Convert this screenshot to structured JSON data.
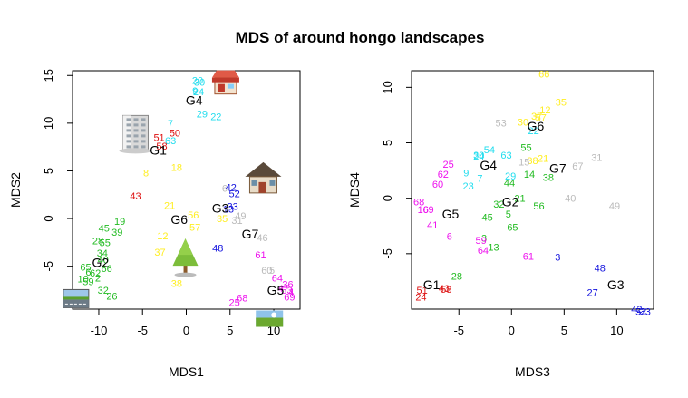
{
  "chart_data": {
    "title": "MDS of around hongo landscapes",
    "colors": {
      "green": "#22bb22",
      "yellow": "#ffee22",
      "cyan": "#22ddee",
      "red": "#dd1111",
      "blue": "#1111dd",
      "magenta": "#ee11ee",
      "gray": "#bbbbbb",
      "black": "#000000"
    },
    "panels": [
      {
        "type": "scatter",
        "xlabel": "MDS1",
        "ylabel": "MDS2",
        "xlim": [
          -13,
          13
        ],
        "ylim": [
          -9.5,
          15.5
        ],
        "xticks": [
          -10,
          -5,
          0,
          5,
          10
        ],
        "yticks": [
          -5,
          0,
          5,
          10,
          15
        ],
        "xtick_labels": [
          "-10",
          "-5",
          "0",
          "5",
          "10"
        ],
        "ytick_labels": [
          "-5",
          "0",
          "5",
          "10",
          "15"
        ],
        "icons": [
          {
            "name": "road-icon",
            "x": -12.6,
            "y": -8.4
          },
          {
            "name": "building-icon",
            "x": -5.8,
            "y": 9.0
          },
          {
            "name": "shop-icon",
            "x": 4.5,
            "y": 14.2
          },
          {
            "name": "house-icon",
            "x": 8.8,
            "y": 4.2
          },
          {
            "name": "tree-icon",
            "x": -0.1,
            "y": -4.0
          },
          {
            "name": "landscape-icon",
            "x": 9.5,
            "y": -10.5
          }
        ],
        "groups": [
          {
            "label": "G1",
            "x": -3.2,
            "y": 7.2
          },
          {
            "label": "G2",
            "x": -9.8,
            "y": -4.6
          },
          {
            "label": "G3",
            "x": 3.9,
            "y": 1.1
          },
          {
            "label": "G4",
            "x": 0.9,
            "y": 12.4
          },
          {
            "label": "G5",
            "x": 10.2,
            "y": -7.5
          },
          {
            "label": "G6",
            "x": -0.8,
            "y": -0.1
          },
          {
            "label": "G7",
            "x": 7.3,
            "y": -1.6
          }
        ],
        "points": [
          {
            "label": "7",
            "x": -1.8,
            "y": 10.0,
            "color": "cyan"
          },
          {
            "label": "63",
            "x": -1.8,
            "y": 8.2,
            "color": "cyan"
          },
          {
            "label": "29",
            "x": 1.8,
            "y": 11.0,
            "color": "cyan"
          },
          {
            "label": "22",
            "x": 3.4,
            "y": 10.7,
            "color": "cyan"
          },
          {
            "label": "20",
            "x": 1.3,
            "y": 14.5,
            "color": "cyan"
          },
          {
            "label": "30",
            "x": 1.5,
            "y": 14.3,
            "color": "cyan"
          },
          {
            "label": "24",
            "x": 1.4,
            "y": 13.3,
            "color": "cyan"
          },
          {
            "label": "9",
            "x": 1.0,
            "y": 13.4,
            "color": "cyan"
          },
          {
            "label": "50",
            "x": -1.3,
            "y": 9.0,
            "color": "red"
          },
          {
            "label": "51",
            "x": -3.1,
            "y": 8.5,
            "color": "red"
          },
          {
            "label": "58",
            "x": -2.8,
            "y": 7.6,
            "color": "red"
          },
          {
            "label": "43",
            "x": -5.8,
            "y": 2.4,
            "color": "red"
          },
          {
            "label": "8",
            "x": -4.6,
            "y": 4.8,
            "color": "yellow"
          },
          {
            "label": "18",
            "x": -1.1,
            "y": 5.4,
            "color": "yellow"
          },
          {
            "label": "21",
            "x": -1.9,
            "y": 1.4,
            "color": "yellow"
          },
          {
            "label": "12",
            "x": -2.7,
            "y": -1.8,
            "color": "yellow"
          },
          {
            "label": "37",
            "x": -3.0,
            "y": -3.5,
            "color": "yellow"
          },
          {
            "label": "56",
            "x": 0.8,
            "y": 0.4,
            "color": "yellow"
          },
          {
            "label": "57",
            "x": 1.0,
            "y": -0.9,
            "color": "yellow"
          },
          {
            "label": "35",
            "x": 4.1,
            "y": 0.0,
            "color": "yellow"
          },
          {
            "label": "38",
            "x": -1.1,
            "y": -6.8,
            "color": "yellow"
          },
          {
            "label": "19",
            "x": -7.6,
            "y": -0.3,
            "color": "green"
          },
          {
            "label": "45",
            "x": -9.4,
            "y": -1.0,
            "color": "green"
          },
          {
            "label": "39",
            "x": -7.9,
            "y": -1.4,
            "color": "green"
          },
          {
            "label": "28",
            "x": -10.1,
            "y": -2.3,
            "color": "green"
          },
          {
            "label": "55",
            "x": -9.3,
            "y": -2.5,
            "color": "green"
          },
          {
            "label": "34",
            "x": -9.6,
            "y": -3.6,
            "color": "green"
          },
          {
            "label": "40",
            "x": -9.5,
            "y": -4.3,
            "color": "green"
          },
          {
            "label": "65",
            "x": -11.5,
            "y": -5.1,
            "color": "green"
          },
          {
            "label": "66",
            "x": -9.1,
            "y": -5.2,
            "color": "green"
          },
          {
            "label": "62",
            "x": -10.4,
            "y": -5.7,
            "color": "green"
          },
          {
            "label": "6",
            "x": -11.2,
            "y": -5.6,
            "color": "green"
          },
          {
            "label": "2",
            "x": -10.1,
            "y": -6.2,
            "color": "green"
          },
          {
            "label": "10",
            "x": -11.8,
            "y": -6.3,
            "color": "green"
          },
          {
            "label": "59",
            "x": -11.2,
            "y": -6.6,
            "color": "green"
          },
          {
            "label": "32",
            "x": -9.5,
            "y": -7.5,
            "color": "green"
          },
          {
            "label": "26",
            "x": -8.5,
            "y": -8.1,
            "color": "green"
          },
          {
            "label": "6",
            "x": 4.4,
            "y": 3.2,
            "color": "gray"
          },
          {
            "label": "49",
            "x": 6.2,
            "y": 0.3,
            "color": "gray"
          },
          {
            "label": "31",
            "x": 5.8,
            "y": -0.2,
            "color": "gray"
          },
          {
            "label": "46",
            "x": 8.7,
            "y": -2.0,
            "color": "gray"
          },
          {
            "label": "60",
            "x": 9.2,
            "y": -5.4,
            "color": "gray"
          },
          {
            "label": "5",
            "x": 9.8,
            "y": -5.4,
            "color": "gray"
          },
          {
            "label": "42",
            "x": 5.1,
            "y": 3.3,
            "color": "blue"
          },
          {
            "label": "52",
            "x": 5.5,
            "y": 2.6,
            "color": "blue"
          },
          {
            "label": "33",
            "x": 5.3,
            "y": 1.3,
            "color": "blue"
          },
          {
            "label": "13",
            "x": 4.8,
            "y": 1.0,
            "color": "blue"
          },
          {
            "label": "48",
            "x": 3.6,
            "y": -3.1,
            "color": "blue"
          },
          {
            "label": "61",
            "x": 8.5,
            "y": -3.8,
            "color": "magenta"
          },
          {
            "label": "64",
            "x": 10.4,
            "y": -6.2,
            "color": "magenta"
          },
          {
            "label": "36",
            "x": 11.6,
            "y": -6.9,
            "color": "magenta"
          },
          {
            "label": "47",
            "x": 11.1,
            "y": -7.3,
            "color": "magenta"
          },
          {
            "label": "53",
            "x": 11.5,
            "y": -7.5,
            "color": "magenta"
          },
          {
            "label": "4",
            "x": 12.0,
            "y": -7.7,
            "color": "magenta"
          },
          {
            "label": "69",
            "x": 11.8,
            "y": -8.2,
            "color": "magenta"
          },
          {
            "label": "68",
            "x": 6.4,
            "y": -8.3,
            "color": "magenta"
          },
          {
            "label": "25",
            "x": 5.5,
            "y": -8.8,
            "color": "magenta"
          }
        ]
      },
      {
        "type": "scatter",
        "xlabel": "MDS3",
        "ylabel": "MDS4",
        "xlim": [
          -9.5,
          13.5
        ],
        "ylim": [
          -10,
          11.5
        ],
        "xticks": [
          -5,
          0,
          5,
          10
        ],
        "yticks": [
          -5,
          0,
          5,
          10
        ],
        "xtick_labels": [
          "-5",
          "0",
          "5",
          "10"
        ],
        "ytick_labels": [
          "-5",
          "0",
          "5",
          "10"
        ],
        "icons": [],
        "groups": [
          {
            "label": "G1",
            "x": -7.6,
            "y": -7.8
          },
          {
            "label": "G2",
            "x": -0.1,
            "y": -0.3
          },
          {
            "label": "G3",
            "x": 9.9,
            "y": -7.8
          },
          {
            "label": "G4",
            "x": -2.2,
            "y": 3.0
          },
          {
            "label": "G5",
            "x": -5.8,
            "y": -1.4
          },
          {
            "label": "G6",
            "x": 2.3,
            "y": 6.5
          },
          {
            "label": "G7",
            "x": 4.4,
            "y": 2.7
          }
        ],
        "points": [
          {
            "label": "66",
            "x": 3.1,
            "y": 11.2,
            "color": "yellow"
          },
          {
            "label": "35",
            "x": 4.7,
            "y": 8.7,
            "color": "yellow"
          },
          {
            "label": "12",
            "x": 3.2,
            "y": 8.0,
            "color": "yellow"
          },
          {
            "label": "37",
            "x": 2.4,
            "y": 7.4,
            "color": "yellow"
          },
          {
            "label": "57",
            "x": 2.8,
            "y": 7.3,
            "color": "yellow"
          },
          {
            "label": "30",
            "x": 1.1,
            "y": 6.9,
            "color": "yellow"
          },
          {
            "label": "38",
            "x": 2.0,
            "y": 3.4,
            "color": "yellow"
          },
          {
            "label": "21",
            "x": 3.0,
            "y": 3.6,
            "color": "yellow"
          },
          {
            "label": "22",
            "x": 2.1,
            "y": 6.1,
            "color": "cyan"
          },
          {
            "label": "54",
            "x": -2.1,
            "y": 4.4,
            "color": "cyan"
          },
          {
            "label": "24",
            "x": -3.1,
            "y": 3.8,
            "color": "cyan"
          },
          {
            "label": "30",
            "x": -3.1,
            "y": 3.9,
            "color": "cyan"
          },
          {
            "label": "63",
            "x": -0.5,
            "y": 3.9,
            "color": "cyan"
          },
          {
            "label": "9",
            "x": -4.3,
            "y": 2.3,
            "color": "cyan"
          },
          {
            "label": "7",
            "x": -3.0,
            "y": 1.8,
            "color": "cyan"
          },
          {
            "label": "29",
            "x": -0.1,
            "y": 2.0,
            "color": "cyan"
          },
          {
            "label": "23",
            "x": -4.1,
            "y": 1.1,
            "color": "cyan"
          },
          {
            "label": "53",
            "x": -1.0,
            "y": 6.8,
            "color": "gray"
          },
          {
            "label": "15",
            "x": 1.2,
            "y": 3.3,
            "color": "gray"
          },
          {
            "label": "67",
            "x": 6.3,
            "y": 2.9,
            "color": "gray"
          },
          {
            "label": "31",
            "x": 8.1,
            "y": 3.7,
            "color": "gray"
          },
          {
            "label": "40",
            "x": 5.6,
            "y": 0.0,
            "color": "gray"
          },
          {
            "label": "49",
            "x": 9.8,
            "y": -0.7,
            "color": "gray"
          },
          {
            "label": "55",
            "x": 1.4,
            "y": 4.6,
            "color": "green"
          },
          {
            "label": "14",
            "x": 1.7,
            "y": 2.2,
            "color": "green"
          },
          {
            "label": "38",
            "x": 3.5,
            "y": 1.9,
            "color": "green"
          },
          {
            "label": "56",
            "x": 2.6,
            "y": -0.7,
            "color": "green"
          },
          {
            "label": "21",
            "x": 0.8,
            "y": 0.0,
            "color": "green"
          },
          {
            "label": "44",
            "x": -0.2,
            "y": 1.4,
            "color": "green"
          },
          {
            "label": "32",
            "x": -1.2,
            "y": -0.5,
            "color": "green"
          },
          {
            "label": "45",
            "x": -2.3,
            "y": -1.7,
            "color": "green"
          },
          {
            "label": "65",
            "x": 0.1,
            "y": -2.6,
            "color": "green"
          },
          {
            "label": "5",
            "x": -0.3,
            "y": -1.4,
            "color": "green"
          },
          {
            "label": "28",
            "x": -5.2,
            "y": -7.0,
            "color": "green"
          },
          {
            "label": "3",
            "x": -2.6,
            "y": -3.6,
            "color": "green"
          },
          {
            "label": "13",
            "x": -1.7,
            "y": -4.4,
            "color": "green"
          },
          {
            "label": "43",
            "x": -6.4,
            "y": -8.1,
            "color": "red"
          },
          {
            "label": "58",
            "x": -6.2,
            "y": -8.2,
            "color": "red"
          },
          {
            "label": "24",
            "x": -8.6,
            "y": -8.9,
            "color": "red"
          },
          {
            "label": "51",
            "x": -8.5,
            "y": -8.3,
            "color": "red"
          },
          {
            "label": "25",
            "x": -6.0,
            "y": 3.1,
            "color": "magenta"
          },
          {
            "label": "62",
            "x": -6.5,
            "y": 2.2,
            "color": "magenta"
          },
          {
            "label": "60",
            "x": -7.0,
            "y": 1.3,
            "color": "magenta"
          },
          {
            "label": "68",
            "x": -8.8,
            "y": -0.3,
            "color": "magenta"
          },
          {
            "label": "16",
            "x": -8.4,
            "y": -1.0,
            "color": "magenta"
          },
          {
            "label": "69",
            "x": -7.9,
            "y": -1.0,
            "color": "magenta"
          },
          {
            "label": "41",
            "x": -7.5,
            "y": -2.4,
            "color": "magenta"
          },
          {
            "label": "6",
            "x": -5.9,
            "y": -3.4,
            "color": "magenta"
          },
          {
            "label": "59",
            "x": -2.9,
            "y": -3.8,
            "color": "magenta"
          },
          {
            "label": "61",
            "x": 1.6,
            "y": -5.2,
            "color": "magenta"
          },
          {
            "label": "64",
            "x": -2.7,
            "y": -4.7,
            "color": "magenta"
          },
          {
            "label": "3",
            "x": 4.4,
            "y": -5.3,
            "color": "blue"
          },
          {
            "label": "48",
            "x": 8.4,
            "y": -6.3,
            "color": "blue"
          },
          {
            "label": "27",
            "x": 7.7,
            "y": -8.5,
            "color": "blue"
          },
          {
            "label": "42",
            "x": 11.9,
            "y": -10.0,
            "color": "blue"
          },
          {
            "label": "52",
            "x": 12.3,
            "y": -10.2,
            "color": "blue"
          },
          {
            "label": "33",
            "x": 12.7,
            "y": -10.2,
            "color": "blue"
          }
        ]
      }
    ]
  }
}
